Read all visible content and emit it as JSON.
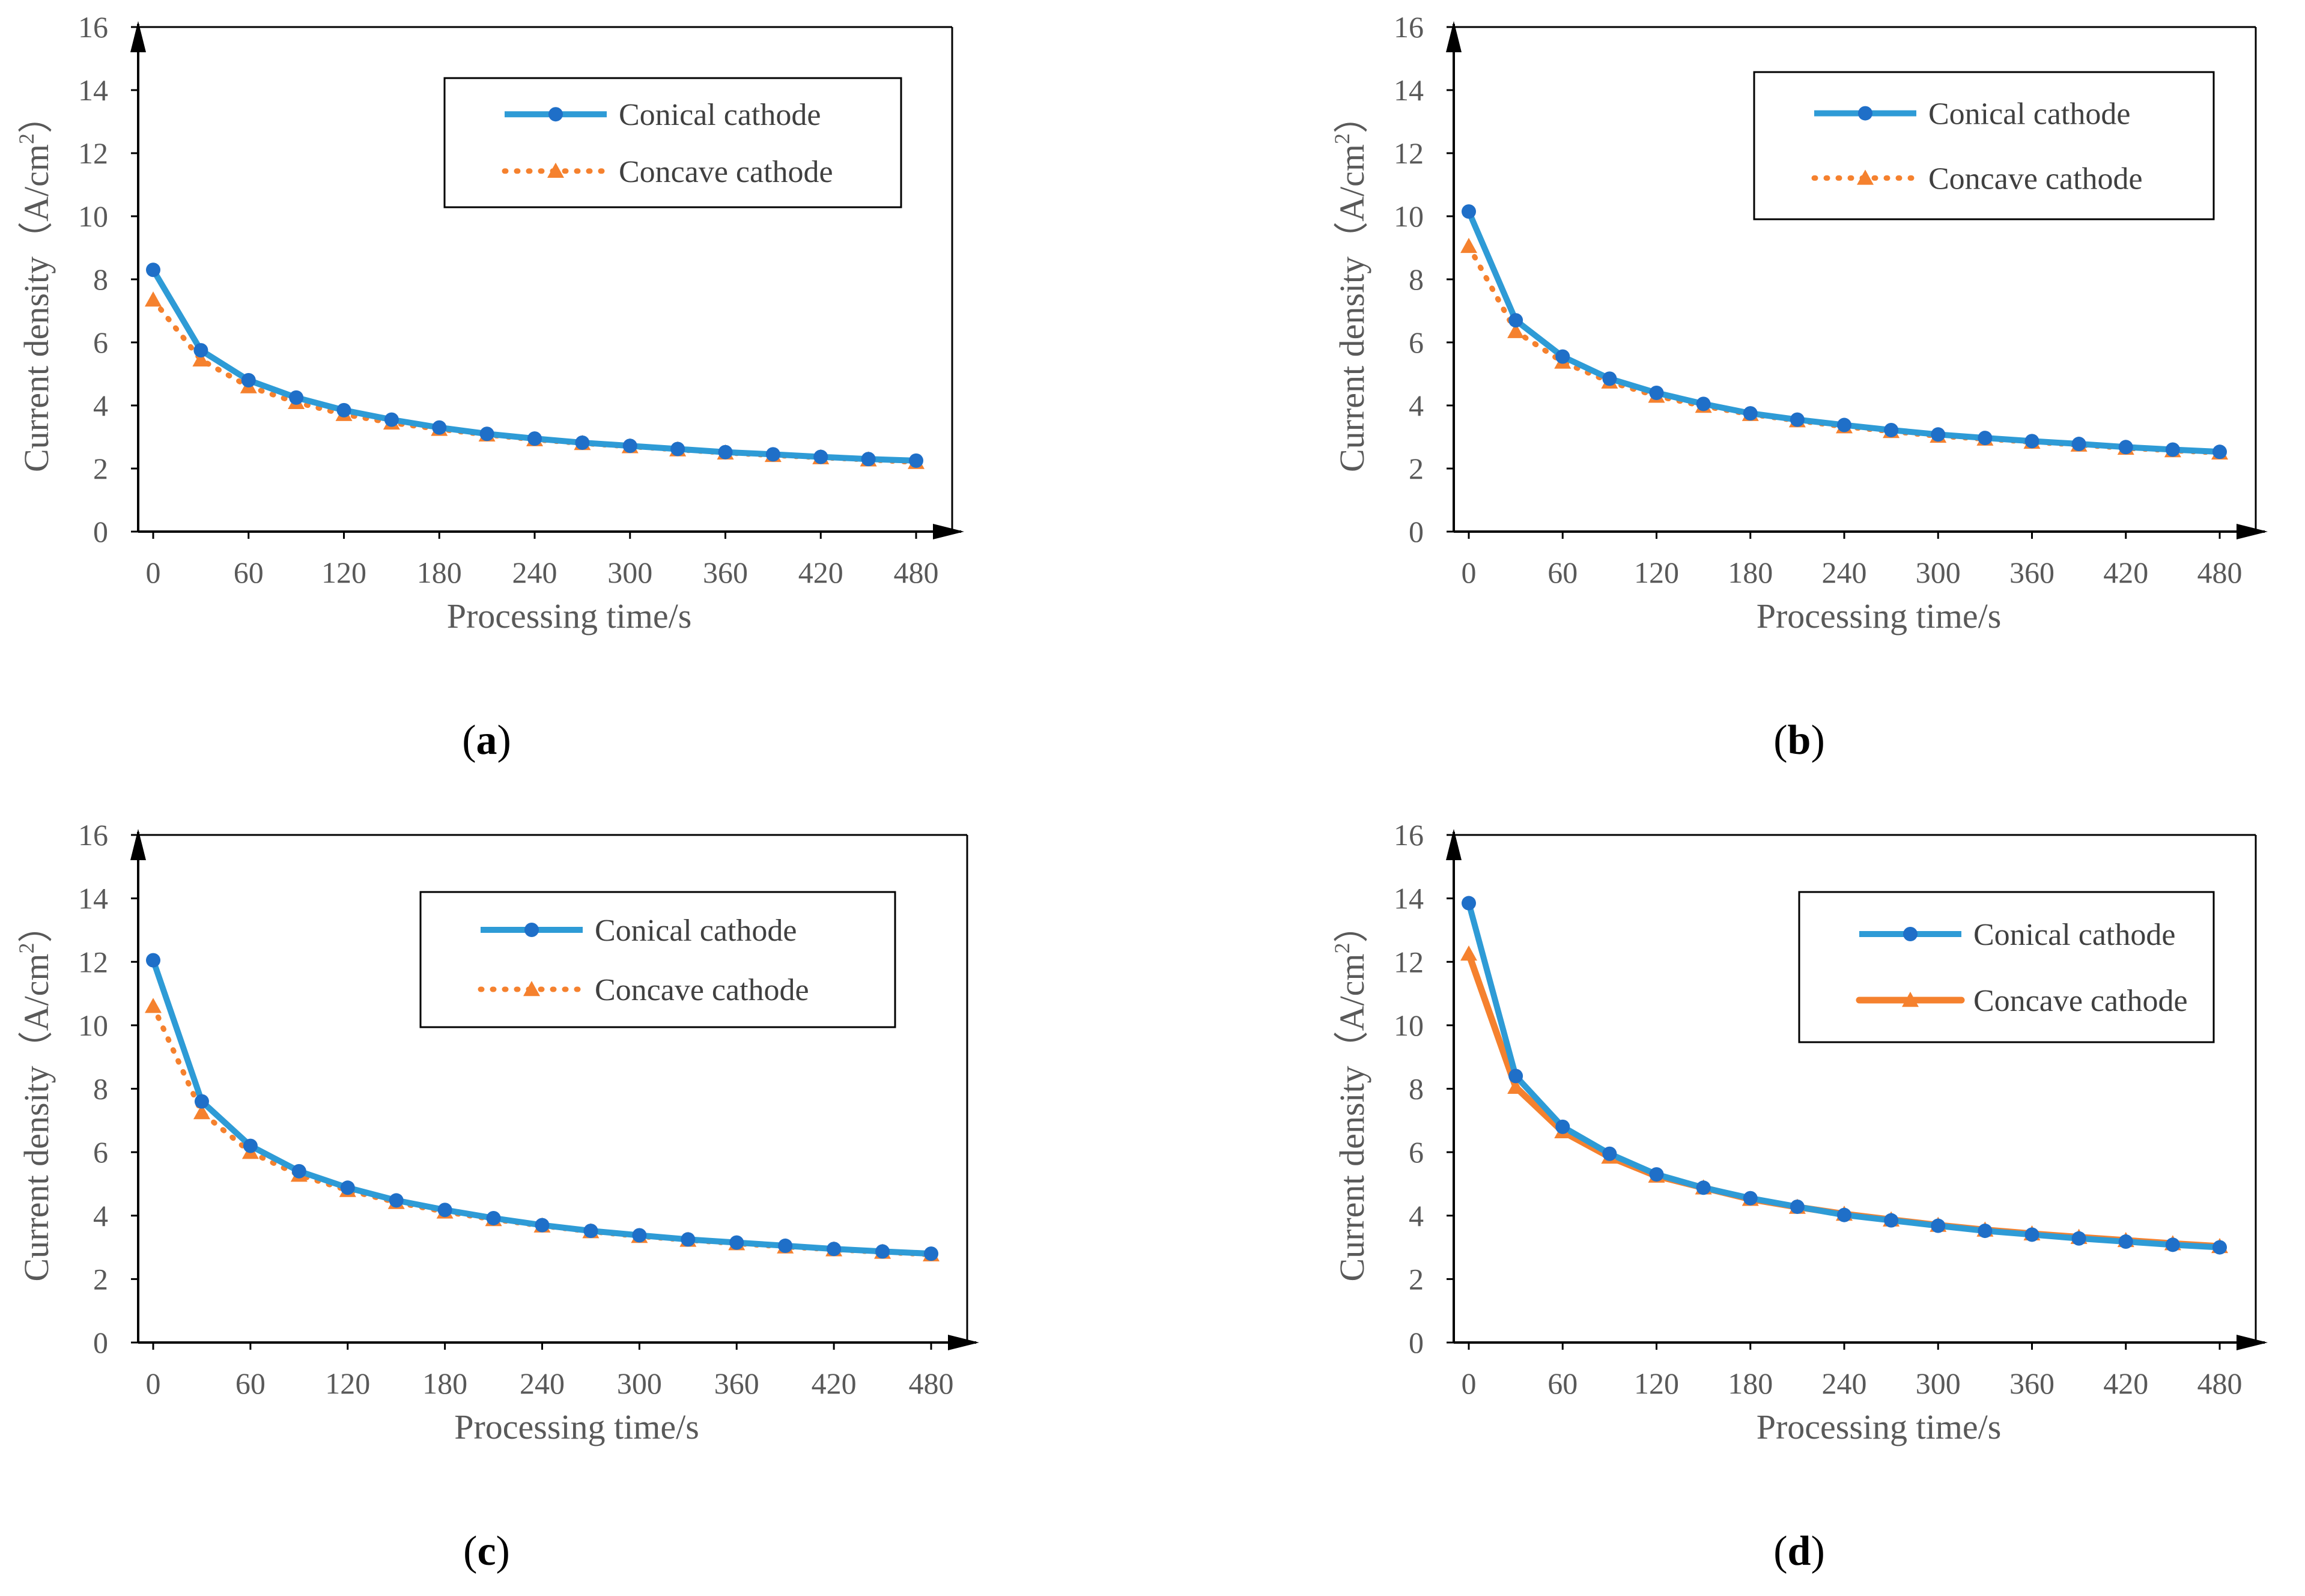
{
  "colors": {
    "conical": "#2E9BD6",
    "conical_marker": "#1F6FC8",
    "concave": "#F5812E",
    "axis": "#000000",
    "text": "#595959"
  },
  "chart_data": [
    {
      "panel": "a",
      "label_parts": [
        "(",
        "a",
        ")"
      ],
      "type": "line",
      "x": [
        0,
        30,
        60,
        90,
        120,
        150,
        180,
        210,
        240,
        270,
        300,
        330,
        360,
        390,
        420,
        450,
        480
      ],
      "xticks": [
        "0",
        "60",
        "120",
        "180",
        "240",
        "300",
        "360",
        "420",
        "480"
      ],
      "xlim": [
        0,
        480
      ],
      "yticks": [
        "0",
        "2",
        "4",
        "6",
        "8",
        "10",
        "12",
        "14",
        "16"
      ],
      "ylim": [
        0,
        16
      ],
      "xlabel": "Processing time/s",
      "ylabel_parts": [
        "Current density（A/cm",
        "2",
        "）"
      ],
      "concave_style": "dotted",
      "series": [
        {
          "name": "Conical cathode",
          "values": [
            8.3,
            5.75,
            4.8,
            4.25,
            3.85,
            3.55,
            3.3,
            3.1,
            2.95,
            2.82,
            2.72,
            2.62,
            2.52,
            2.45,
            2.37,
            2.3,
            2.25
          ]
        },
        {
          "name": "Concave cathode",
          "values": [
            7.35,
            5.45,
            4.6,
            4.1,
            3.72,
            3.45,
            3.25,
            3.07,
            2.92,
            2.8,
            2.7,
            2.6,
            2.5,
            2.42,
            2.35,
            2.28,
            2.2
          ]
        }
      ]
    },
    {
      "panel": "b",
      "label_parts": [
        "(",
        "b",
        ")"
      ],
      "type": "line",
      "x": [
        0,
        30,
        60,
        90,
        120,
        150,
        180,
        210,
        240,
        270,
        300,
        330,
        360,
        390,
        420,
        450,
        480
      ],
      "xticks": [
        "0",
        "60",
        "120",
        "180",
        "240",
        "300",
        "360",
        "420",
        "480"
      ],
      "xlim": [
        0,
        480
      ],
      "yticks": [
        "0",
        "2",
        "4",
        "6",
        "8",
        "10",
        "12",
        "14",
        "16"
      ],
      "ylim": [
        0,
        16
      ],
      "xlabel": "Processing time/s",
      "ylabel_parts": [
        "Current density（A/cm",
        "2",
        "）"
      ],
      "concave_style": "dotted",
      "series": [
        {
          "name": "Conical cathode",
          "values": [
            10.15,
            6.7,
            5.55,
            4.85,
            4.4,
            4.05,
            3.75,
            3.55,
            3.38,
            3.22,
            3.08,
            2.97,
            2.87,
            2.78,
            2.68,
            2.6,
            2.53
          ]
        },
        {
          "name": "Concave cathode",
          "values": [
            9.05,
            6.35,
            5.38,
            4.75,
            4.3,
            3.98,
            3.72,
            3.52,
            3.33,
            3.18,
            3.03,
            2.94,
            2.84,
            2.75,
            2.65,
            2.57,
            2.5
          ]
        }
      ]
    },
    {
      "panel": "c",
      "label_parts": [
        "(",
        "c",
        ")"
      ],
      "type": "line",
      "x": [
        0,
        30,
        60,
        90,
        120,
        150,
        180,
        210,
        240,
        270,
        300,
        330,
        360,
        390,
        420,
        450,
        480
      ],
      "xticks": [
        "0",
        "60",
        "120",
        "180",
        "240",
        "300",
        "360",
        "420",
        "480"
      ],
      "xlim": [
        0,
        480
      ],
      "yticks": [
        "0",
        "2",
        "4",
        "6",
        "8",
        "10",
        "12",
        "14",
        "16"
      ],
      "ylim": [
        0,
        16
      ],
      "xlabel": "Processing time/s",
      "ylabel_parts": [
        "Current density（A/cm",
        "2",
        "）"
      ],
      "concave_style": "dotted",
      "series": [
        {
          "name": "Conical cathode",
          "values": [
            12.05,
            7.6,
            6.2,
            5.4,
            4.88,
            4.48,
            4.18,
            3.92,
            3.7,
            3.52,
            3.38,
            3.25,
            3.15,
            3.05,
            2.95,
            2.87,
            2.8
          ]
        },
        {
          "name": "Concave cathode",
          "values": [
            10.6,
            7.25,
            6.0,
            5.28,
            4.8,
            4.42,
            4.12,
            3.88,
            3.68,
            3.5,
            3.35,
            3.23,
            3.12,
            3.02,
            2.93,
            2.85,
            2.77
          ]
        }
      ]
    },
    {
      "panel": "d",
      "label_parts": [
        "(",
        "d",
        ")"
      ],
      "type": "line",
      "x": [
        0,
        30,
        60,
        90,
        120,
        150,
        180,
        210,
        240,
        270,
        300,
        330,
        360,
        390,
        420,
        450,
        480
      ],
      "xticks": [
        "0",
        "60",
        "120",
        "180",
        "240",
        "300",
        "360",
        "420",
        "480"
      ],
      "xlim": [
        0,
        480
      ],
      "yticks": [
        "0",
        "2",
        "4",
        "6",
        "8",
        "10",
        "12",
        "14",
        "16"
      ],
      "ylim": [
        0,
        16
      ],
      "xlabel": "Processing time/s",
      "ylabel_parts": [
        "Current density（A/cm",
        "2",
        "）"
      ],
      "concave_style": "solid",
      "series": [
        {
          "name": "Conical cathode",
          "values": [
            13.85,
            8.4,
            6.8,
            5.95,
            5.3,
            4.88,
            4.55,
            4.28,
            4.02,
            3.85,
            3.68,
            3.52,
            3.4,
            3.28,
            3.18,
            3.08,
            3.0
          ]
        },
        {
          "name": "Concave cathode",
          "values": [
            12.25,
            8.05,
            6.65,
            5.85,
            5.25,
            4.88,
            4.52,
            4.27,
            4.05,
            3.87,
            3.7,
            3.55,
            3.43,
            3.32,
            3.22,
            3.12,
            3.03
          ]
        }
      ]
    }
  ]
}
